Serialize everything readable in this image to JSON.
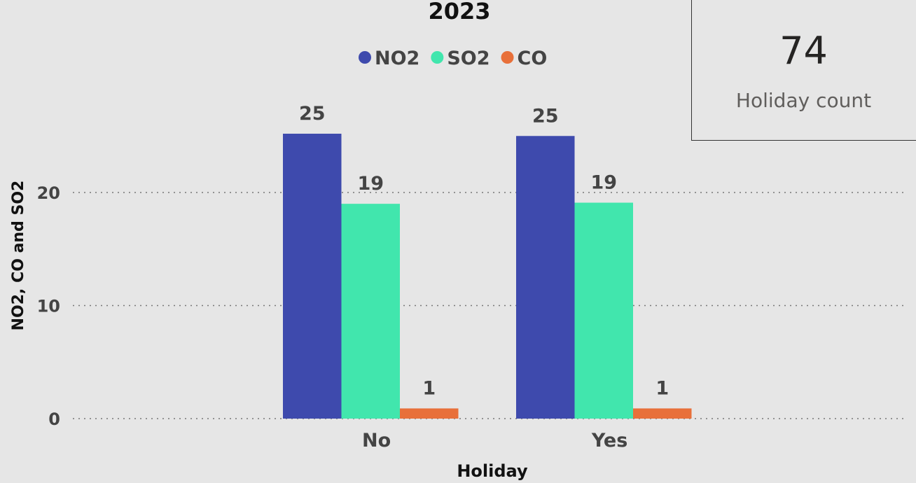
{
  "chart_data": {
    "type": "bar",
    "title": "2023",
    "xlabel": "Holiday",
    "ylabel": "NO2, CO and SO2",
    "categories": [
      "No",
      "Yes"
    ],
    "series": [
      {
        "name": "NO2",
        "color": "#3e4aad",
        "values": [
          25.2,
          25.0
        ]
      },
      {
        "name": "SO2",
        "color": "#41e6ad",
        "values": [
          19.0,
          19.1
        ]
      },
      {
        "name": "CO",
        "color": "#e8703a",
        "values": [
          0.9,
          0.9
        ]
      }
    ],
    "data_labels": [
      [
        "25",
        "19",
        "1"
      ],
      [
        "25",
        "19",
        "1"
      ]
    ],
    "yticks": [
      0,
      10,
      20
    ],
    "ylim": [
      0,
      25
    ],
    "grid": true,
    "legend_position": "top"
  },
  "card": {
    "value": "74",
    "label": "Holiday count"
  }
}
